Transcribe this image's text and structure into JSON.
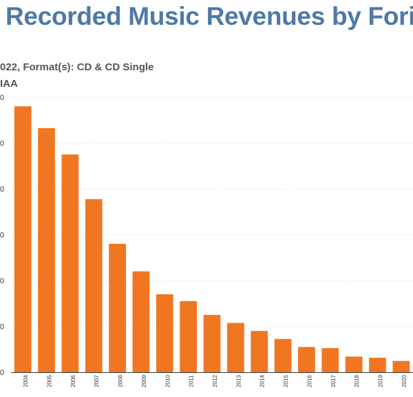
{
  "title": "Recorded Music Revenues by Fori",
  "subtitle": "022, Format(s): CD & CD Single",
  "source": "IAA",
  "colors": {
    "bar": "#f07622",
    "title": "#4e79a7",
    "grid": "#dddddd"
  },
  "chart_data": {
    "type": "bar",
    "categories": [
      "2004",
      "2005",
      "2006",
      "2007",
      "2008",
      "2009",
      "2010",
      "2011",
      "2012",
      "2013",
      "2014",
      "2015",
      "2016",
      "2017",
      "2018",
      "2019",
      "2020"
    ],
    "values": [
      11.6,
      10.65,
      9.5,
      7.55,
      5.6,
      4.4,
      3.4,
      3.1,
      2.5,
      2.15,
      1.8,
      1.45,
      1.1,
      1.05,
      0.68,
      0.63,
      0.49
    ],
    "ytick_labels": [
      "0",
      "0",
      "0",
      "0",
      "0",
      "0",
      "0"
    ],
    "ylim": [
      0,
      12
    ],
    "grid": true,
    "grid_style": "dotted",
    "xlabel": "",
    "ylabel": ""
  }
}
